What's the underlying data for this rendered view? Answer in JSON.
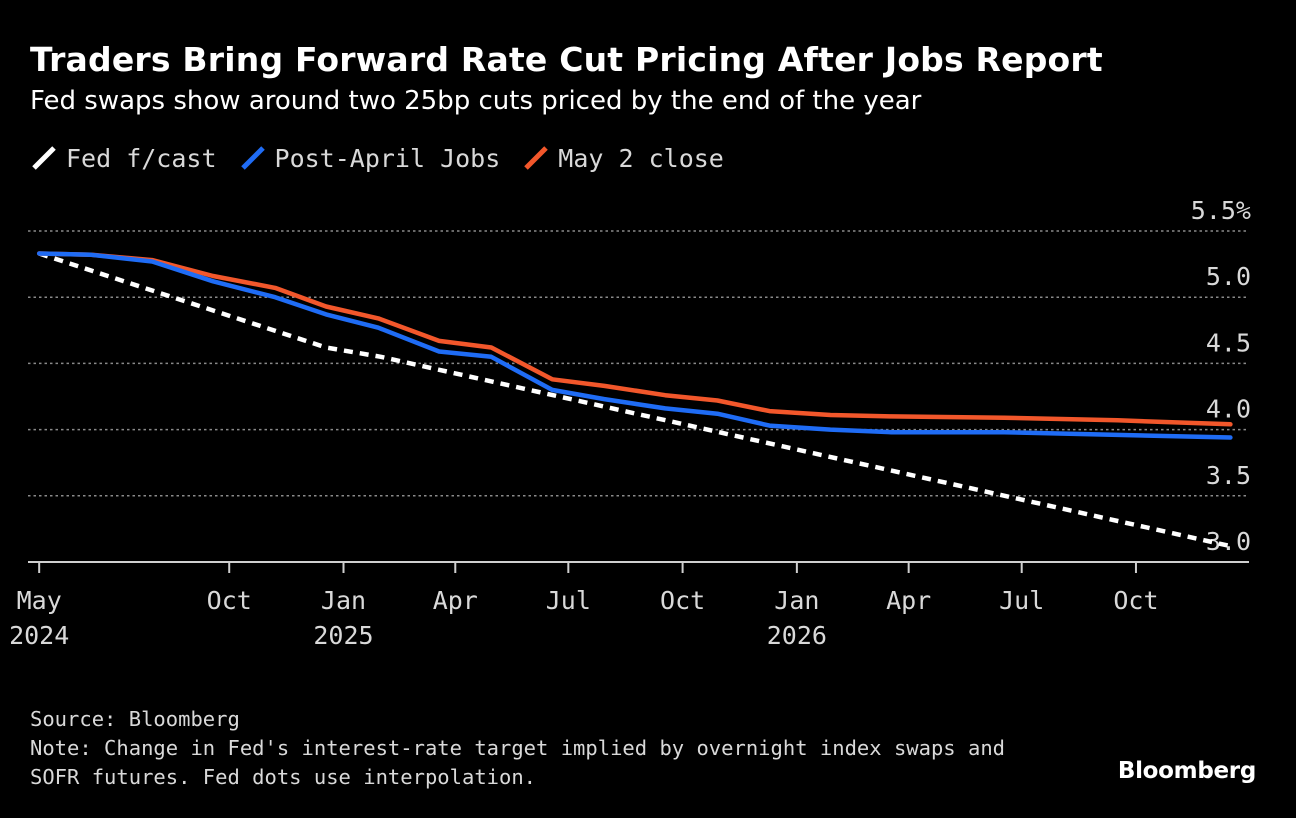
{
  "title": "Traders Bring Forward Rate Cut Pricing After Jobs Report",
  "subtitle": "Fed swaps show around two 25bp cuts priced by the end of the year",
  "legend": [
    {
      "label": "Fed f/cast",
      "color": "#ffffff"
    },
    {
      "label": "Post-April Jobs",
      "color": "#1f6cf5"
    },
    {
      "label": "May 2 close",
      "color": "#f2572b"
    }
  ],
  "source": "Source: Bloomberg",
  "note_lines": [
    "Note: Change in Fed's interest-rate target implied by overnight index swaps and",
    "SOFR futures. Fed dots use interpolation."
  ],
  "brand": "Bloomberg",
  "chart_data": {
    "type": "line",
    "title": "Traders Bring Forward Rate Cut Pricing After Jobs Report",
    "subtitle": "Fed swaps show around two 25bp cuts priced by the end of the year",
    "xlabel": "",
    "ylabel": "",
    "y_unit": "%",
    "ylim": [
      3.0,
      5.5
    ],
    "y_ticks": [
      {
        "value": 3.0,
        "label": "3.0"
      },
      {
        "value": 3.5,
        "label": "3.5"
      },
      {
        "value": 4.0,
        "label": "4.0"
      },
      {
        "value": 4.5,
        "label": "4.5"
      },
      {
        "value": 5.0,
        "label": "5.0"
      },
      {
        "value": 5.5,
        "label": "5.5%"
      }
    ],
    "x_ticks": [
      {
        "date": "2024-05-01",
        "label": "May",
        "year": "2024"
      },
      {
        "date": "2024-10-01",
        "label": "Oct"
      },
      {
        "date": "2025-01-01",
        "label": "Jan",
        "year": "2025"
      },
      {
        "date": "2025-04-01",
        "label": "Apr"
      },
      {
        "date": "2025-07-01",
        "label": "Jul"
      },
      {
        "date": "2025-10-01",
        "label": "Oct"
      },
      {
        "date": "2026-01-01",
        "label": "Jan",
        "year": "2026"
      },
      {
        "date": "2026-04-01",
        "label": "Apr"
      },
      {
        "date": "2026-07-01",
        "label": "Jul"
      },
      {
        "date": "2026-10-01",
        "label": "Oct"
      }
    ],
    "xlim": [
      "2024-04-22",
      "2026-12-31"
    ],
    "grid": true,
    "legend_position": "top-left",
    "series": [
      {
        "name": "Fed f/cast",
        "color": "#ffffff",
        "style": "dashed",
        "points": [
          {
            "x": "2024-05-01",
            "y": 5.33
          },
          {
            "x": "2024-12-18",
            "y": 4.62
          },
          {
            "x": "2025-01-31",
            "y": 4.55
          },
          {
            "x": "2026-12-16",
            "y": 3.12
          }
        ]
      },
      {
        "name": "Post-April Jobs",
        "color": "#1f6cf5",
        "style": "solid",
        "points": [
          {
            "x": "2024-05-01",
            "y": 5.33
          },
          {
            "x": "2024-06-12",
            "y": 5.32
          },
          {
            "x": "2024-07-31",
            "y": 5.27
          },
          {
            "x": "2024-09-18",
            "y": 5.12
          },
          {
            "x": "2024-11-07",
            "y": 5.0
          },
          {
            "x": "2024-12-18",
            "y": 4.87
          },
          {
            "x": "2025-01-29",
            "y": 4.77
          },
          {
            "x": "2025-03-19",
            "y": 4.59
          },
          {
            "x": "2025-04-30",
            "y": 4.55
          },
          {
            "x": "2025-06-18",
            "y": 4.3
          },
          {
            "x": "2025-07-30",
            "y": 4.23
          },
          {
            "x": "2025-09-17",
            "y": 4.16
          },
          {
            "x": "2025-10-29",
            "y": 4.12
          },
          {
            "x": "2025-12-10",
            "y": 4.03
          },
          {
            "x": "2026-01-28",
            "y": 4.0
          },
          {
            "x": "2026-03-18",
            "y": 3.98
          },
          {
            "x": "2026-06-17",
            "y": 3.98
          },
          {
            "x": "2026-09-16",
            "y": 3.96
          },
          {
            "x": "2026-12-16",
            "y": 3.94
          }
        ]
      },
      {
        "name": "May 2 close",
        "color": "#f2572b",
        "style": "solid",
        "points": [
          {
            "x": "2024-05-01",
            "y": 5.33
          },
          {
            "x": "2024-06-12",
            "y": 5.32
          },
          {
            "x": "2024-07-31",
            "y": 5.28
          },
          {
            "x": "2024-09-18",
            "y": 5.16
          },
          {
            "x": "2024-11-07",
            "y": 5.07
          },
          {
            "x": "2024-12-18",
            "y": 4.93
          },
          {
            "x": "2025-01-29",
            "y": 4.84
          },
          {
            "x": "2025-03-19",
            "y": 4.67
          },
          {
            "x": "2025-04-30",
            "y": 4.62
          },
          {
            "x": "2025-06-18",
            "y": 4.38
          },
          {
            "x": "2025-07-30",
            "y": 4.33
          },
          {
            "x": "2025-09-17",
            "y": 4.26
          },
          {
            "x": "2025-10-29",
            "y": 4.22
          },
          {
            "x": "2025-12-10",
            "y": 4.14
          },
          {
            "x": "2026-01-28",
            "y": 4.11
          },
          {
            "x": "2026-03-18",
            "y": 4.1
          },
          {
            "x": "2026-06-17",
            "y": 4.09
          },
          {
            "x": "2026-09-16",
            "y": 4.07
          },
          {
            "x": "2026-12-16",
            "y": 4.04
          }
        ]
      }
    ]
  }
}
